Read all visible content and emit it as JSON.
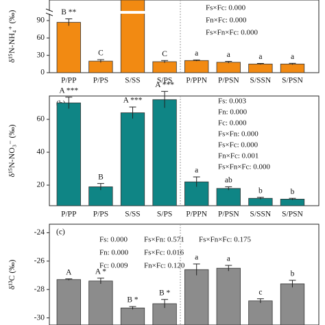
{
  "chart_data": [
    {
      "type": "bar",
      "ylabel": "δ¹⁵N-NH₄⁺ (‰)",
      "color": "#f28a12",
      "categories": [
        "P/PP",
        "P/PS",
        "S/SS",
        "S/PS",
        "P/PPN",
        "P/PSN",
        "S/SSN",
        "S/PSN"
      ],
      "values": [
        87,
        20,
        125.6,
        19,
        21,
        18,
        15,
        15
      ],
      "errors": [
        6,
        2.5,
        null,
        2,
        1,
        1.5,
        1,
        1.2
      ],
      "letters": [
        "B **",
        "C",
        null,
        "C",
        "a",
        "a",
        "a",
        "a"
      ],
      "stats": [
        "Fs×Fc: 0.000",
        "Fn×Fc: 0.000",
        "Fs×Fn×Fc: 0.000"
      ],
      "ylim": [
        0,
        125.6
      ],
      "yticks": [
        0,
        30,
        60,
        90
      ]
    },
    {
      "type": "bar",
      "panel_label": "(b)",
      "ylabel": "δ¹⁵N-NO₃⁻ (‰)",
      "color": "#0f8585",
      "categories": [
        "P/PP",
        "P/PS",
        "S/SS",
        "S/PS",
        "P/PPN",
        "P/PSN",
        "S/SSN",
        "S/PSN"
      ],
      "values": [
        70,
        19,
        64,
        72,
        22,
        18,
        12,
        11.5
      ],
      "errors": [
        3.5,
        2,
        3.5,
        5,
        3,
        1,
        0.6,
        0.5
      ],
      "letters": [
        "A ***",
        "B",
        "A ***",
        "A ***",
        "a",
        "ab",
        "b",
        "b"
      ],
      "stats": [
        "Fs: 0.003",
        "Fn: 0.000",
        "Fc: 0.000",
        "Fs×Fn: 0.000",
        "Fs×Fc: 0.000",
        "Fn×Fc: 0.001",
        "Fs×Fn×Fc: 0.000"
      ],
      "ylim": [
        7.5,
        74.2
      ],
      "yticks": [
        20,
        40,
        60
      ]
    },
    {
      "type": "bar",
      "panel_label": "(c)",
      "ylabel": "δ¹³C (‰)",
      "color": "#8c8c8c",
      "categories": [
        null,
        null,
        null,
        null,
        null,
        null,
        null,
        null
      ],
      "values": [
        -27.3,
        -27.4,
        -29.3,
        -29.0,
        -26.6,
        -26.5,
        -28.8,
        -27.6
      ],
      "errors": [
        0.05,
        0.2,
        0.1,
        0.3,
        0.4,
        0.2,
        0.15,
        0.25
      ],
      "letters": [
        "A",
        "A *",
        "B *",
        "B *",
        "a",
        "a",
        "c",
        "b"
      ],
      "stats": [
        "Fs: 0.000",
        "Fn: 0.000",
        "Fc: 0.009",
        "Fs×Fn: 0.571",
        "Fs×Fc: 0.016",
        "Fn×Fc: 0.120",
        "Fs×Fn×Fc: 0.175"
      ],
      "ylim": [
        -30.5,
        -23.4
      ],
      "yticks": [
        -30,
        -28,
        -26,
        -24
      ]
    }
  ]
}
